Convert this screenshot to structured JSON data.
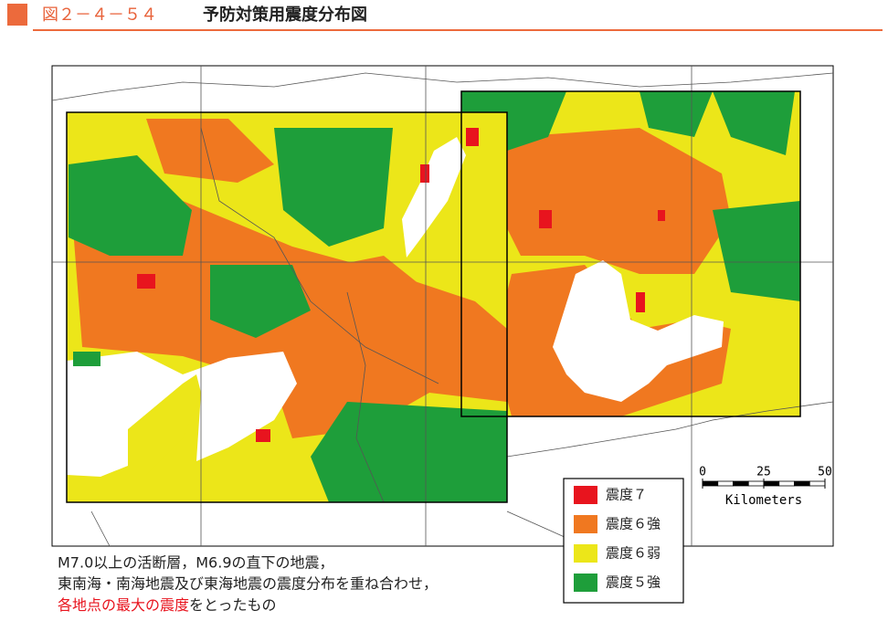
{
  "header": {
    "figure_number": "図２－４－５４",
    "title": "予防対策用震度分布図"
  },
  "legend": {
    "items": [
      {
        "label": "震度７",
        "color": "#e8141e"
      },
      {
        "label": "震度６強",
        "color": "#f07820"
      },
      {
        "label": "震度６弱",
        "color": "#ece619"
      },
      {
        "label": "震度５強",
        "color": "#1e9e3a"
      }
    ]
  },
  "scale_bar": {
    "ticks": [
      0,
      25,
      50
    ],
    "unit": "Kilometers"
  },
  "caption": {
    "lines": [
      "M7.0以上の活断層，M6.9の直下の地震，",
      "東南海・南海地震及び東海地震の震度分布を重ね合わせ，"
    ],
    "highlight": "各地点の最大の震度",
    "rest": "をとったもの"
  }
}
